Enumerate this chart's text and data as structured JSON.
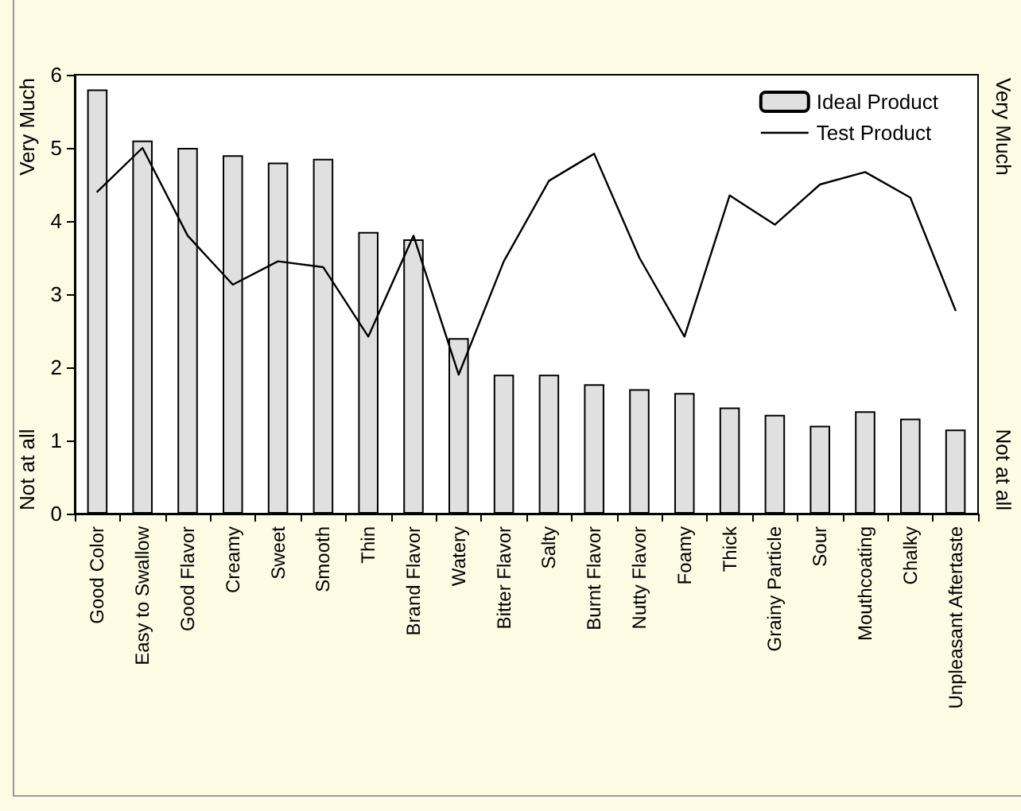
{
  "chart_data": {
    "type": "bar",
    "categories": [
      "Good Color",
      "Easy to Swallow",
      "Good Flavor",
      "Creamy",
      "Sweet",
      "Smooth",
      "Thin",
      "Brand Flavor",
      "Watery",
      "Bitter Flavor",
      "Salty",
      "Burnt Flavor",
      "Nutty Flavor",
      "Foamy",
      "Thick",
      "Grainy Particle",
      "Sour",
      "Mouthcoating",
      "Chalky",
      "Unpleasant Aftertaste"
    ],
    "series": [
      {
        "name": "Ideal Product",
        "color": "#e0e0e0",
        "values": [
          5.8,
          5.1,
          5.0,
          4.9,
          4.8,
          4.85,
          3.85,
          3.75,
          2.4,
          1.9,
          1.9,
          1.77,
          1.7,
          1.65,
          1.45,
          1.35,
          1.2,
          1.4,
          1.3,
          1.15
        ]
      },
      {
        "name": "Test Product",
        "type": "line",
        "color": "#000000",
        "values": [
          4.4,
          5.0,
          3.8,
          3.13,
          3.45,
          3.37,
          2.42,
          3.8,
          1.9,
          3.45,
          4.55,
          4.92,
          3.5,
          2.42,
          4.35,
          3.95,
          4.5,
          4.67,
          4.32,
          2.78
        ]
      }
    ],
    "ylim": [
      0,
      6
    ],
    "yticks": [
      0,
      1,
      2,
      3,
      4,
      5,
      6
    ],
    "annotations": [
      "Very Much",
      "Not at all",
      "Very Much",
      "Not at all"
    ],
    "grid": false,
    "legend": "top right",
    "marker": "none",
    "line_style": "solid"
  }
}
